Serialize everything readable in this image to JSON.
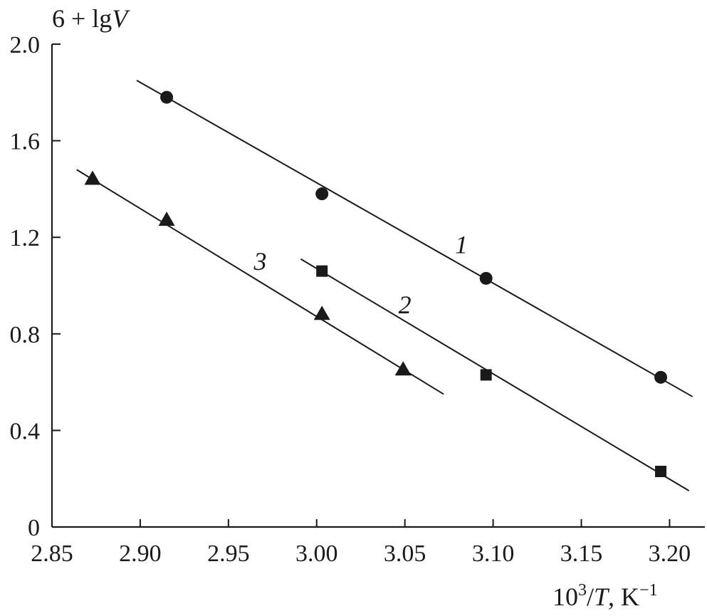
{
  "chart_data": {
    "type": "scatter",
    "ylabel": {
      "prefix": "6 + lg",
      "var": "V"
    },
    "xlabel": {
      "base": "10",
      "exp": "3",
      "slash": "/",
      "var": "T",
      "unit": ", K",
      "unit_exp": "−1"
    },
    "xlim": [
      2.85,
      3.22
    ],
    "ylim": [
      0,
      2.0
    ],
    "xticks": [
      "2.85",
      "2.90",
      "2.95",
      "3.00",
      "3.05",
      "3.10",
      "3.15",
      "3.20"
    ],
    "yticks": [
      "0",
      "0.4",
      "0.8",
      "1.2",
      "1.6",
      "2.0"
    ],
    "grid": false,
    "series": [
      {
        "name": "1",
        "marker": "circle",
        "points": [
          [
            2.915,
            1.78
          ],
          [
            3.003,
            1.38
          ],
          [
            3.096,
            1.03
          ],
          [
            3.195,
            0.62
          ]
        ],
        "fit_line": [
          [
            2.898,
            1.85
          ],
          [
            3.213,
            0.54
          ]
        ],
        "label_at": [
          3.082,
          1.17
        ]
      },
      {
        "name": "2",
        "marker": "square",
        "points": [
          [
            3.003,
            1.06
          ],
          [
            3.096,
            0.63
          ],
          [
            3.195,
            0.23
          ]
        ],
        "fit_line": [
          [
            2.991,
            1.11
          ],
          [
            3.211,
            0.15
          ]
        ],
        "label_at": [
          3.05,
          0.92
        ]
      },
      {
        "name": "3",
        "marker": "triangle",
        "points": [
          [
            2.873,
            1.44
          ],
          [
            2.915,
            1.27
          ],
          [
            3.003,
            0.88
          ],
          [
            3.049,
            0.65
          ]
        ],
        "fit_line": [
          [
            2.864,
            1.48
          ],
          [
            3.072,
            0.55
          ]
        ],
        "label_at": [
          2.968,
          1.1
        ]
      }
    ]
  }
}
